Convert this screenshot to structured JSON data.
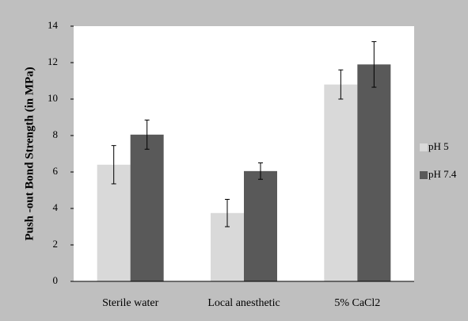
{
  "chart_data": {
    "type": "bar",
    "title": "",
    "xlabel": "",
    "ylabel": "Push -out Bond Strength (in MPa)",
    "ylim": [
      0,
      14
    ],
    "yticks": [
      0,
      2,
      4,
      6,
      8,
      10,
      12,
      14
    ],
    "grid": false,
    "legend_position": "right",
    "categories": [
      "Sterile water",
      "Local anesthetic",
      "5% CaCl2"
    ],
    "series": [
      {
        "name": "pH 5",
        "color": "#d9d9d9",
        "values": [
          6.4,
          3.75,
          10.8
        ],
        "error": [
          1.05,
          0.75,
          0.8
        ]
      },
      {
        "name": "pH 7.4",
        "color": "#595959",
        "values": [
          8.05,
          6.05,
          11.9
        ],
        "error": [
          0.8,
          0.45,
          1.25
        ]
      }
    ]
  }
}
